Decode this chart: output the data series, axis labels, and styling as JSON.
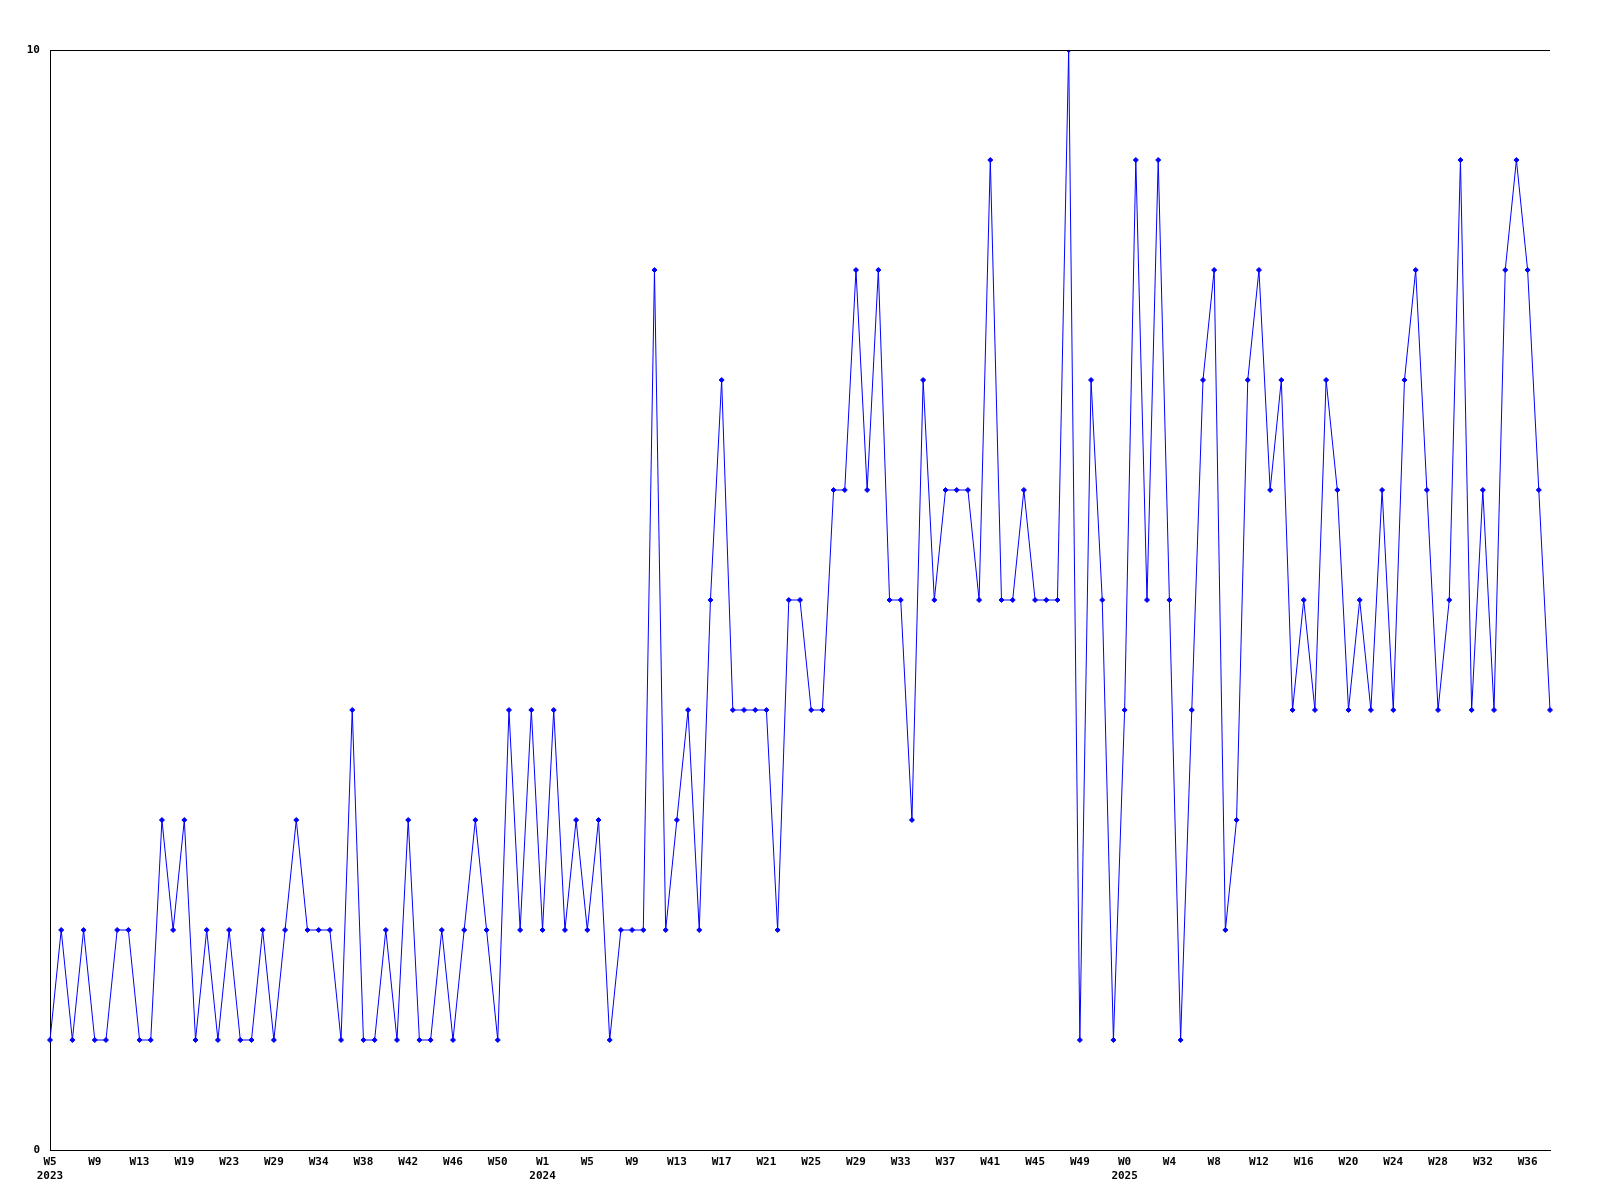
{
  "chart_data": {
    "type": "line",
    "categories": [
      "W5\n2023",
      null,
      null,
      null,
      "W9",
      null,
      null,
      null,
      "W13",
      null,
      null,
      null,
      "W19",
      null,
      null,
      null,
      "W23",
      null,
      null,
      null,
      "W29",
      null,
      null,
      null,
      "W34",
      null,
      null,
      null,
      "W38",
      null,
      null,
      null,
      "W42",
      null,
      null,
      null,
      "W46",
      null,
      null,
      null,
      "W50",
      null,
      null,
      null,
      "W1\n2024",
      null,
      null,
      null,
      "W5",
      null,
      null,
      null,
      "W9",
      null,
      null,
      null,
      "W13",
      null,
      null,
      null,
      "W17",
      null,
      null,
      null,
      "W21",
      null,
      null,
      null,
      "W25",
      null,
      null,
      null,
      "W29",
      null,
      null,
      null,
      "W33",
      null,
      null,
      null,
      "W37",
      null,
      null,
      null,
      "W41",
      null,
      null,
      null,
      "W45",
      null,
      null,
      null,
      "W49",
      null,
      null,
      null,
      "W0\n2025",
      null,
      null,
      null,
      "W4",
      null,
      null,
      null,
      "W8",
      null,
      null,
      null,
      "W12",
      null,
      null,
      null,
      "W16",
      null,
      null,
      null,
      "W20",
      null,
      null,
      null,
      "W24",
      null,
      null,
      null,
      "W28",
      null,
      null,
      null,
      "W32",
      null,
      null,
      null,
      "W36",
      null,
      null
    ],
    "series": [
      {
        "color": "#0000ff",
        "values": [
          1,
          2,
          1,
          2,
          1,
          1,
          2,
          2,
          1,
          1,
          3,
          2,
          3,
          1,
          2,
          1,
          2,
          1,
          1,
          2,
          1,
          2,
          3,
          2,
          2,
          2,
          1,
          4,
          1,
          1,
          2,
          1,
          3,
          1,
          1,
          2,
          1,
          2,
          3,
          2,
          1,
          4,
          2,
          4,
          2,
          4,
          2,
          3,
          2,
          3,
          1,
          2,
          2,
          2,
          8,
          2,
          3,
          4,
          2,
          5,
          7,
          4,
          4,
          4,
          4,
          2,
          5,
          5,
          4,
          4,
          6,
          6,
          8,
          6,
          8,
          5,
          5,
          3,
          7,
          5,
          6,
          6,
          6,
          5,
          9,
          5,
          5,
          6,
          5,
          5,
          5,
          10,
          1,
          7,
          5,
          1,
          4,
          9,
          5,
          9,
          5,
          1,
          4,
          7,
          8,
          2,
          3,
          7,
          8,
          6,
          7,
          4,
          5,
          4,
          7,
          6,
          4,
          5,
          4,
          6,
          4,
          7,
          8,
          6,
          4,
          5,
          9,
          4,
          6,
          4,
          8,
          9,
          8,
          6,
          4
        ]
      }
    ],
    "ylim": [
      0,
      10
    ],
    "yticks": [
      0,
      10
    ],
    "grid": false,
    "legend": false,
    "marker": "diamond",
    "line_style": "solid"
  }
}
